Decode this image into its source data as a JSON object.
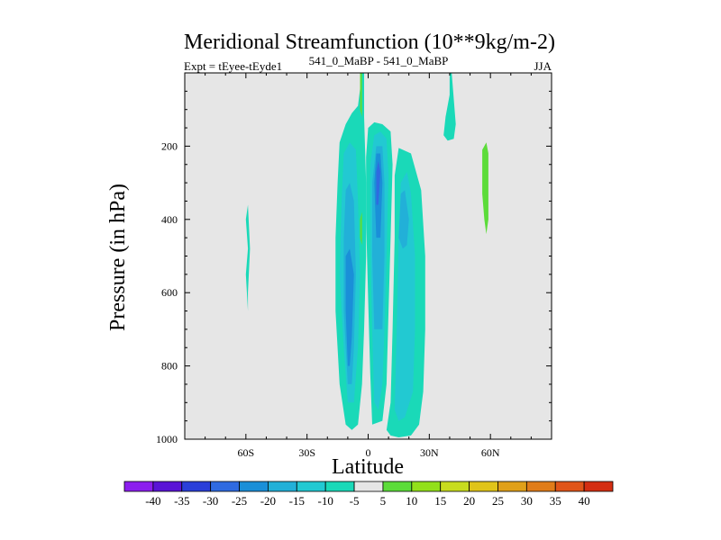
{
  "chart_data": {
    "type": "contour",
    "title": "Meridional Streamfunction (10**9kg/m-2)",
    "left_string": "Expt = tEyee-tEyde1",
    "center_string": "541_0_MaBP - 541_0_MaBP",
    "right_string": "JJA",
    "xlabel": "Latitude",
    "ylabel": "Pressure (in hPa)",
    "xlim": [
      -90,
      90
    ],
    "ylim": [
      1000,
      0
    ],
    "x_ticks": [
      {
        "value": -60,
        "label": "60S"
      },
      {
        "value": -30,
        "label": "30S"
      },
      {
        "value": 0,
        "label": "0"
      },
      {
        "value": 30,
        "label": "30N"
      },
      {
        "value": 60,
        "label": "60N"
      }
    ],
    "y_ticks": [
      {
        "value": 200,
        "label": "200"
      },
      {
        "value": 400,
        "label": "400"
      },
      {
        "value": 600,
        "label": "600"
      },
      {
        "value": 800,
        "label": "800"
      },
      {
        "value": 1000,
        "label": "1000"
      }
    ],
    "levels": [
      -40,
      -35,
      -30,
      -25,
      -20,
      -15,
      -10,
      -5,
      5,
      10,
      15,
      20,
      25,
      30,
      35,
      40
    ],
    "colors": [
      "#8c1eee",
      "#5a14d6",
      "#2a3fd9",
      "#2f6ae0",
      "#1a8fd8",
      "#22b0d8",
      "#22c9d2",
      "#1ad9b8",
      "#e6e6e6",
      "#5cdc3a",
      "#92e01a",
      "#c8dc1e",
      "#e0c419",
      "#e0a019",
      "#e07c19",
      "#e05519",
      "#d42e12"
    ],
    "features": [
      {
        "name": "tropical-negative-cell",
        "sign": "negative",
        "shells": [
          {
            "level": -5,
            "polygon": [
              [
                -11,
                960
              ],
              [
                -14,
                850
              ],
              [
                -16,
                650
              ],
              [
                -16,
                450
              ],
              [
                -15,
                300
              ],
              [
                -14,
                190
              ],
              [
                -11,
                140
              ],
              [
                -8,
                110
              ],
              [
                -5,
                90
              ],
              [
                -3,
                0
              ],
              [
                -2,
                0
              ],
              [
                -2,
                120
              ],
              [
                -1,
                300
              ],
              [
                -1,
                500
              ],
              [
                -2,
                700
              ],
              [
                -3,
                850
              ],
              [
                -5,
                960
              ],
              [
                -8,
                975
              ]
            ]
          },
          {
            "level": -10,
            "polygon": [
              [
                -10,
                900
              ],
              [
                -12,
                750
              ],
              [
                -14,
                550
              ],
              [
                -13,
                350
              ],
              [
                -12,
                220
              ],
              [
                -9,
                190
              ],
              [
                -6,
                210
              ],
              [
                -5,
                350
              ],
              [
                -4,
                550
              ],
              [
                -5,
                750
              ],
              [
                -7,
                900
              ]
            ]
          },
          {
            "level": -15,
            "polygon": [
              [
                -10,
                850
              ],
              [
                -12,
                650
              ],
              [
                -12,
                450
              ],
              [
                -11,
                320
              ],
              [
                -9,
                300
              ],
              [
                -7,
                350
              ],
              [
                -6,
                550
              ],
              [
                -7,
                750
              ],
              [
                -8,
                850
              ]
            ]
          },
          {
            "level": -20,
            "polygon": [
              [
                -10,
                800
              ],
              [
                -11,
                650
              ],
              [
                -11,
                500
              ],
              [
                -9,
                480
              ],
              [
                -7,
                550
              ],
              [
                -8,
                720
              ],
              [
                -9,
                800
              ]
            ]
          }
        ]
      },
      {
        "name": "equatorial-negative-cell",
        "sign": "negative",
        "shells": [
          {
            "level": -5,
            "polygon": [
              [
                2,
                960
              ],
              [
                1,
                820
              ],
              [
                0,
                620
              ],
              [
                -1,
                400
              ],
              [
                -1,
                230
              ],
              [
                0,
                150
              ],
              [
                3,
                135
              ],
              [
                7,
                140
              ],
              [
                11,
                160
              ],
              [
                12,
                250
              ],
              [
                11,
                450
              ],
              [
                10,
                650
              ],
              [
                9,
                850
              ],
              [
                7,
                950
              ]
            ]
          },
          {
            "level": -10,
            "polygon": [
              [
                3,
                900
              ],
              [
                2,
                700
              ],
              [
                1,
                450
              ],
              [
                1,
                250
              ],
              [
                3,
                170
              ],
              [
                6,
                160
              ],
              [
                9,
                180
              ],
              [
                10,
                280
              ],
              [
                9,
                500
              ],
              [
                8,
                700
              ],
              [
                7,
                850
              ],
              [
                5,
                920
              ]
            ]
          },
          {
            "level": -15,
            "polygon": [
              [
                3,
                700
              ],
              [
                2,
                500
              ],
              [
                2,
                300
              ],
              [
                4,
                200
              ],
              [
                7,
                200
              ],
              [
                8,
                300
              ],
              [
                8,
                500
              ],
              [
                7,
                700
              ]
            ]
          },
          {
            "level": -20,
            "polygon": [
              [
                4,
                450
              ],
              [
                3,
                300
              ],
              [
                4,
                220
              ],
              [
                6,
                220
              ],
              [
                7,
                300
              ],
              [
                6,
                450
              ]
            ]
          },
          {
            "level": -25,
            "polygon": [
              [
                4,
                360
              ],
              [
                4,
                270
              ],
              [
                5,
                240
              ],
              [
                6,
                270
              ],
              [
                5,
                360
              ]
            ]
          }
        ]
      },
      {
        "name": "southern-negative-outer-band",
        "sign": "negative",
        "shells": [
          {
            "level": -5,
            "polygon": [
              [
                9,
                975
              ],
              [
                11,
                900
              ],
              [
                12,
                700
              ],
              [
                13,
                450
              ],
              [
                13,
                280
              ],
              [
                15,
                205
              ],
              [
                21,
                220
              ],
              [
                26,
                320
              ],
              [
                28,
                500
              ],
              [
                28,
                700
              ],
              [
                27,
                870
              ],
              [
                25,
                960
              ],
              [
                21,
                990
              ],
              [
                15,
                995
              ],
              [
                11,
                990
              ]
            ]
          },
          {
            "level": -10,
            "polygon": [
              [
                13,
                920
              ],
              [
                14,
                700
              ],
              [
                15,
                450
              ],
              [
                16,
                300
              ],
              [
                19,
                270
              ],
              [
                21,
                330
              ],
              [
                23,
                500
              ],
              [
                23,
                700
              ],
              [
                22,
                870
              ],
              [
                18,
                940
              ],
              [
                15,
                950
              ]
            ]
          },
          {
            "level": -15,
            "polygon": [
              [
                15,
                450
              ],
              [
                16,
                330
              ],
              [
                18,
                320
              ],
              [
                20,
                400
              ],
              [
                19,
                470
              ],
              [
                17,
                480
              ]
            ]
          }
        ]
      },
      {
        "name": "high-lat-small-negative",
        "sign": "negative",
        "shells": [
          {
            "level": -5,
            "polygon": [
              [
                40,
                0
              ],
              [
                41,
                0
              ],
              [
                43,
                140
              ],
              [
                42,
                180
              ],
              [
                39,
                185
              ],
              [
                37,
                170
              ],
              [
                38,
                120
              ],
              [
                40,
                60
              ]
            ]
          }
        ]
      },
      {
        "name": "southern-small-negative",
        "sign": "negative",
        "shells": [
          {
            "level": -5,
            "polygon": [
              [
                -59,
                480
              ],
              [
                -60,
                400
              ],
              [
                -59,
                360
              ],
              [
                -58,
                480
              ],
              [
                -59,
                600
              ],
              [
                -59,
                650
              ],
              [
                -60,
                550
              ]
            ]
          }
        ]
      },
      {
        "name": "equator-positive-upper",
        "sign": "positive",
        "shells": [
          {
            "level": 5,
            "polygon": [
              [
                -4,
                0
              ],
              [
                -3,
                0
              ],
              [
                -3,
                80
              ],
              [
                -3,
                120
              ],
              [
                -4,
                100
              ]
            ]
          }
        ]
      },
      {
        "name": "equator-positive-mid",
        "sign": "positive",
        "shells": [
          {
            "level": 5,
            "polygon": [
              [
                -3,
                380
              ],
              [
                -3,
                420
              ],
              [
                -3,
                470
              ],
              [
                -4,
                450
              ],
              [
                -4,
                400
              ]
            ]
          }
        ]
      },
      {
        "name": "northern-positive-cell",
        "sign": "positive",
        "shells": [
          {
            "level": 5,
            "polygon": [
              [
                56,
                260
              ],
              [
                56,
                210
              ],
              [
                58,
                190
              ],
              [
                59,
                220
              ],
              [
                59,
                300
              ],
              [
                59,
                400
              ],
              [
                58,
                440
              ],
              [
                57,
                400
              ],
              [
                56,
                330
              ]
            ]
          }
        ]
      }
    ]
  }
}
